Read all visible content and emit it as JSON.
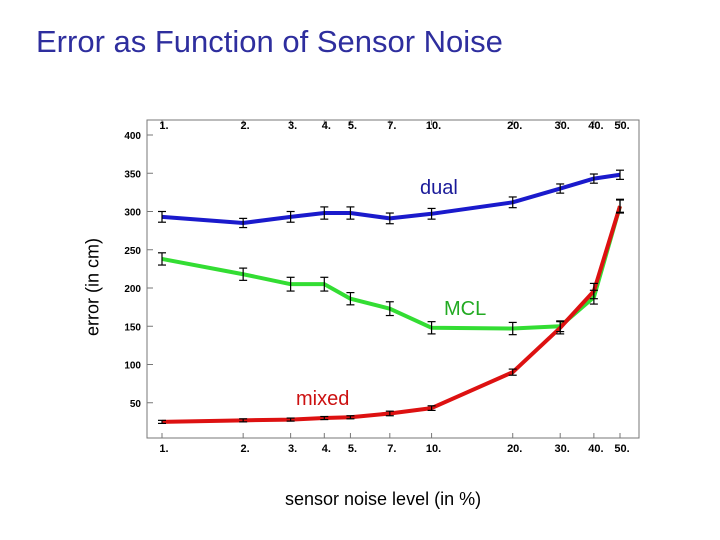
{
  "slide": {
    "title": "Error as Function of Sensor Noise"
  },
  "chart_data": {
    "type": "line",
    "title": "",
    "xlabel": "sensor noise level (in %)",
    "ylabel": "error (in cm)",
    "x_scale": "log",
    "x": [
      1,
      2,
      3,
      4,
      5,
      7,
      10,
      20,
      30,
      40,
      50
    ],
    "x_tick_labels": [
      "1.",
      "2.",
      "3.",
      "4.",
      "5.",
      "7.",
      "10.",
      "20.",
      "30.",
      "40.",
      "50."
    ],
    "y_ticks": [
      50,
      100,
      150,
      200,
      250,
      300,
      350,
      400
    ],
    "ylim": [
      0,
      400
    ],
    "grid": false,
    "legend": "inline labels",
    "series": [
      {
        "name": "dual",
        "color": "#1a1acc",
        "values": [
          293,
          285,
          293,
          298,
          298,
          291,
          297,
          312,
          330,
          343,
          348
        ],
        "errors": [
          7,
          6,
          7,
          8,
          8,
          7,
          7,
          7,
          6,
          6,
          6
        ]
      },
      {
        "name": "MCL",
        "color": "#33dd33",
        "values": [
          238,
          218,
          205,
          205,
          186,
          173,
          148,
          147,
          150,
          188,
          307
        ],
        "errors": [
          8,
          8,
          9,
          9,
          8,
          9,
          8,
          8,
          7,
          9,
          8
        ]
      },
      {
        "name": "mixed",
        "color": "#dd1111",
        "values": [
          25,
          27,
          28,
          30,
          31,
          36,
          43,
          90,
          148,
          196,
          307
        ],
        "errors": [
          2,
          2,
          2,
          2,
          2,
          3,
          3,
          4,
          8,
          10,
          9
        ]
      }
    ]
  }
}
